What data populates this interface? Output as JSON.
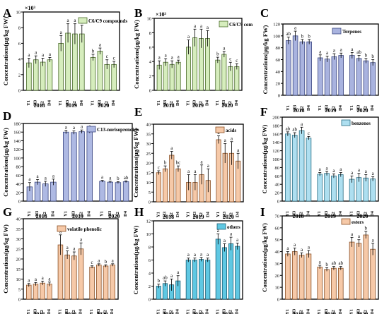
{
  "figure": {
    "panel_letters": [
      "A",
      "B",
      "C",
      "D",
      "E",
      "F",
      "G",
      "H",
      "I"
    ]
  },
  "chart_data": [
    {
      "panel": "A",
      "type": "bar",
      "ylabel": "Concentrations(μg/kg FW)",
      "y_multiplier": "×10³",
      "ylim": [
        0,
        10
      ],
      "yticks": [
        0,
        2,
        4,
        6,
        8,
        10
      ],
      "legend": "C6/C9 compounds",
      "color": "#d6edbd",
      "edge": "#4a6b2a",
      "groups": [
        "2018",
        "2019",
        "2020"
      ],
      "cluster_labels": [
        "Y1",
        "H3",
        "S2",
        "D4"
      ],
      "values": [
        [
          3.5,
          3.9,
          3.6,
          3.9
        ],
        [
          6.0,
          7.3,
          7.2,
          7.2
        ],
        [
          4.2,
          5.0,
          3.3,
          3.3
        ]
      ],
      "errors": [
        [
          0.6,
          0.5,
          0.5,
          0.3
        ],
        [
          1.0,
          1.2,
          1.3,
          1.1
        ],
        [
          0.4,
          0.4,
          0.6,
          0.4
        ]
      ],
      "letters": [
        [
          "a",
          "a",
          "a",
          "a"
        ],
        [
          "a",
          "a",
          "a",
          "a"
        ],
        [
          "b",
          "a",
          "c",
          "c"
        ]
      ]
    },
    {
      "panel": "B",
      "type": "bar",
      "ylabel": "Concentrations(μg/kg FW)",
      "y_multiplier": "×10³",
      "ylim": [
        0,
        10
      ],
      "yticks": [
        0,
        2,
        4,
        6,
        8,
        10
      ],
      "legend": "C6/C9 com",
      "color": "#d6edbd",
      "edge": "#4a6b2a",
      "groups": [
        "2018",
        "2019",
        "2020"
      ],
      "cluster_labels": [
        "Y1",
        "H3",
        "S2",
        "D4"
      ],
      "values": [
        [
          3.5,
          3.9,
          3.6,
          3.9
        ],
        [
          6.0,
          7.3,
          7.2,
          7.2
        ],
        [
          4.2,
          5.0,
          3.3,
          3.3
        ]
      ],
      "errors": [
        [
          0.6,
          0.5,
          0.5,
          0.3
        ],
        [
          1.0,
          1.2,
          1.3,
          1.1
        ],
        [
          0.4,
          0.4,
          0.6,
          0.4
        ]
      ],
      "letters": [
        [
          "a",
          "a",
          "a",
          "a"
        ],
        [
          "a",
          "a",
          "a",
          "a"
        ],
        [
          "b",
          "a",
          "c",
          "c"
        ]
      ]
    },
    {
      "panel": "C",
      "type": "bar",
      "ylabel": "Concentrations(μg/kg FW)",
      "ylim": [
        0,
        120
      ],
      "yticks": [
        0,
        20,
        40,
        60,
        80,
        100,
        120
      ],
      "legend": "Terpenes",
      "color": "#a9b3df",
      "edge": "#3a4680",
      "groups": [
        "2018",
        "2019",
        "2020"
      ],
      "cluster_labels": [
        "Y1",
        "H3",
        "S2",
        "D4"
      ],
      "values": [
        [
          92,
          100,
          90,
          90
        ],
        [
          63,
          61,
          65,
          67
        ],
        [
          67,
          62,
          58,
          55
        ]
      ],
      "errors": [
        [
          6,
          8,
          4,
          4
        ],
        [
          5,
          5,
          5,
          4
        ],
        [
          5,
          5,
          4,
          5
        ]
      ],
      "letters": [
        [
          "ab",
          "a",
          "b",
          "b"
        ],
        [
          "a",
          "a",
          "a",
          "a"
        ],
        [
          "a",
          "ab",
          "b",
          "b"
        ]
      ]
    },
    {
      "panel": "D",
      "type": "bar",
      "ylabel": "Concentrations(μg/kg FW)",
      "ylim": [
        0,
        180
      ],
      "yticks": [
        0,
        20,
        40,
        60,
        80,
        100,
        120,
        140,
        160,
        180
      ],
      "legend": "C13-norisoprenoids",
      "color": "#aeb9e3",
      "edge": "#3a4680",
      "groups": [
        "2018",
        "2019",
        "2020"
      ],
      "cluster_labels": [
        "Y1",
        "H3",
        "S2",
        "D4"
      ],
      "values": [
        [
          33,
          44,
          40,
          44
        ],
        [
          160,
          159,
          161,
          162
        ],
        [
          46,
          44,
          43,
          45
        ]
      ],
      "errors": [
        [
          10,
          6,
          6,
          7
        ],
        [
          4,
          4,
          4,
          4
        ],
        [
          2,
          2,
          2,
          2
        ]
      ],
      "letters": [
        [
          "a",
          "a",
          "a",
          "a"
        ],
        [
          "a",
          "a",
          "a",
          "a"
        ],
        [
          "a",
          "a",
          "b",
          "ab"
        ]
      ]
    },
    {
      "panel": "E",
      "type": "bar",
      "ylabel": "Concentrations(μg/kg FW)",
      "ylim": [
        0,
        40
      ],
      "yticks": [
        0,
        5,
        10,
        15,
        20,
        25,
        30,
        35,
        40
      ],
      "legend": "acids",
      "color": "#f6c9a8",
      "edge": "#8a4f24",
      "groups": [
        "2018",
        "2019",
        "2020"
      ],
      "cluster_labels": [
        "Y1",
        "H3",
        "S2",
        "D4"
      ],
      "values": [
        [
          15,
          17,
          24,
          17
        ],
        [
          10,
          10,
          14,
          11
        ],
        [
          32,
          25,
          25,
          21
        ]
      ],
      "errors": [
        [
          1,
          1.5,
          2,
          1.5
        ],
        [
          4,
          4,
          5,
          6
        ],
        [
          2,
          5,
          6,
          4
        ]
      ],
      "letters": [
        [
          "c",
          "b",
          "a",
          "bc"
        ],
        [
          "a",
          "a",
          "a",
          "a"
        ],
        [
          "a",
          "a",
          "a",
          "a"
        ]
      ]
    },
    {
      "panel": "F",
      "type": "bar",
      "ylabel": "Concentrations(μg/kg FW)",
      "ylim": [
        0,
        200
      ],
      "yticks": [
        0,
        20,
        40,
        60,
        80,
        100,
        120,
        140,
        160,
        180,
        200
      ],
      "legend": "benzenes",
      "color": "#aedff0",
      "edge": "#2b6f85",
      "groups": [
        "2018",
        "2019",
        "2020"
      ],
      "cluster_labels": [
        "Y1",
        "H3",
        "S2",
        "D4"
      ],
      "values": [
        [
          160,
          157,
          168,
          150
        ],
        [
          64,
          66,
          60,
          63
        ],
        [
          52,
          56,
          55,
          53
        ]
      ],
      "errors": [
        [
          5,
          6,
          8,
          4
        ],
        [
          4,
          5,
          5,
          5
        ],
        [
          8,
          10,
          8,
          5
        ]
      ],
      "letters": [
        [
          "ab",
          "ab",
          "a",
          "c"
        ],
        [
          "a",
          "a",
          "a",
          "a"
        ],
        [
          "a",
          "a",
          "a",
          "a"
        ]
      ]
    },
    {
      "panel": "G",
      "type": "bar",
      "ylabel": "Concentrations(μg/kg FW)",
      "ylim": [
        0,
        40
      ],
      "yticks": [
        0,
        5,
        10,
        15,
        20,
        25,
        30,
        35,
        40
      ],
      "legend": "volatile phenolic",
      "color": "#f6c9a8",
      "edge": "#8a4f24",
      "groups": [
        "2018",
        "2019",
        "2020"
      ],
      "cluster_labels": [
        "Y1",
        "H3",
        "S2",
        "D4"
      ],
      "values": [
        [
          7,
          7.5,
          8,
          7.5
        ],
        [
          27,
          22,
          21.5,
          25
        ],
        [
          16,
          17,
          16.5,
          17
        ]
      ],
      "errors": [
        [
          0.8,
          0.8,
          1,
          1
        ],
        [
          5,
          2,
          2,
          3
        ],
        [
          0.6,
          0.6,
          0.6,
          0.6
        ]
      ],
      "letters": [
        [
          "a",
          "a",
          "a",
          "a"
        ],
        [
          "a",
          "a",
          "a",
          "a"
        ],
        [
          "c",
          "a",
          "b",
          "a"
        ]
      ]
    },
    {
      "panel": "H",
      "type": "bar",
      "ylabel": "Concentrations(μg/kg FW)",
      "ylim": [
        0,
        12
      ],
      "yticks": [
        0,
        2,
        4,
        6,
        8,
        10,
        12
      ],
      "legend": "others",
      "color": "#5fc8e3",
      "edge": "#1c5f75",
      "groups": [
        "2018",
        "2019",
        "2020"
      ],
      "cluster_labels": [
        "Y1",
        "H3",
        "S2",
        "D4"
      ],
      "values": [
        [
          2.0,
          2.4,
          2.2,
          2.8
        ],
        [
          6.0,
          6.0,
          6.1,
          6.0
        ],
        [
          9.2,
          7.9,
          8.5,
          8.1
        ]
      ],
      "errors": [
        [
          0.3,
          0.4,
          0.9,
          0.8
        ],
        [
          0.3,
          0.3,
          0.3,
          0.3
        ],
        [
          0.8,
          0.6,
          1.0,
          0.5
        ]
      ],
      "letters": [
        [
          "b",
          "ab",
          "a",
          "a"
        ],
        [
          "a",
          "a",
          "a",
          "a"
        ],
        [
          "a",
          "a",
          "a",
          "a"
        ]
      ]
    },
    {
      "panel": "I",
      "type": "bar",
      "ylabel": "Concentrations(μg/kg FW)",
      "ylim": [
        0,
        70
      ],
      "yticks": [
        0,
        10,
        20,
        30,
        40,
        50,
        60,
        70
      ],
      "legend": "esters",
      "color": "#f6c9a8",
      "edge": "#8a4f24",
      "groups": [
        "2018",
        "2019",
        "2020"
      ],
      "cluster_labels": [
        "Y1",
        "H3",
        "S2",
        "D4"
      ],
      "values": [
        [
          38,
          40,
          37,
          38
        ],
        [
          27,
          25,
          26,
          26
        ],
        [
          48,
          47,
          54,
          42
        ]
      ],
      "errors": [
        [
          2,
          3,
          2,
          3
        ],
        [
          1.5,
          1.5,
          1.5,
          1.5
        ],
        [
          4,
          3,
          3,
          5
        ]
      ],
      "letters": [
        [
          "a",
          "a",
          "a",
          "a"
        ],
        [
          "a",
          "b",
          "ab",
          "ab"
        ],
        [
          "a",
          "a",
          "b",
          "a"
        ]
      ]
    }
  ]
}
